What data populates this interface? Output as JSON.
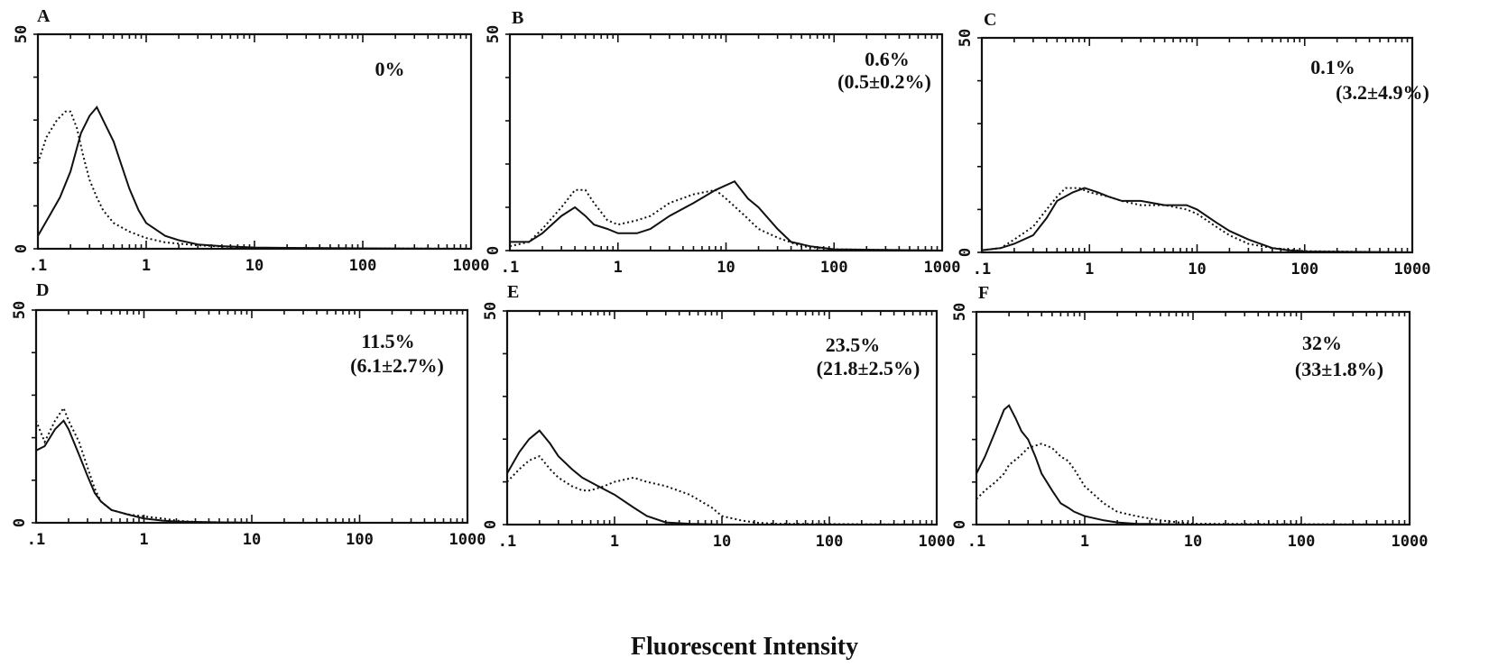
{
  "figure": {
    "xlabel": "Fluorescent Intensity"
  },
  "chart_data": [
    {
      "type": "line",
      "letter": "A",
      "value_text": "0%",
      "mean_text": "",
      "xscale": "log",
      "xlim": [
        0.1,
        1000
      ],
      "ylim": [
        0,
        50
      ],
      "xticklabels": [
        ".1",
        "1",
        "10",
        "100",
        "1000"
      ],
      "yticklabels": [
        "0",
        "50"
      ],
      "series": [
        {
          "style": "solid",
          "x": [
            0.1,
            0.13,
            0.16,
            0.2,
            0.25,
            0.3,
            0.35,
            0.4,
            0.5,
            0.6,
            0.7,
            0.85,
            1,
            1.5,
            2,
            3,
            5,
            10,
            20,
            100,
            1000
          ],
          "y": [
            3,
            8,
            12,
            18,
            27,
            31,
            33,
            30,
            25,
            19,
            14,
            9,
            6,
            3,
            2,
            1,
            0.6,
            0.3,
            0.2,
            0.1,
            0
          ]
        },
        {
          "style": "dotted",
          "x": [
            0.1,
            0.12,
            0.15,
            0.18,
            0.2,
            0.23,
            0.26,
            0.3,
            0.35,
            0.4,
            0.5,
            0.7,
            1,
            1.5,
            3,
            10,
            1000
          ],
          "y": [
            20,
            26,
            30,
            32,
            32,
            28,
            22,
            16,
            12,
            9,
            6,
            4,
            2.5,
            1.5,
            0.8,
            0.2,
            0
          ]
        }
      ]
    },
    {
      "type": "line",
      "letter": "B",
      "value_text": "0.6%",
      "mean_text": "(0.5±0.2%)",
      "xscale": "log",
      "xlim": [
        0.1,
        1000
      ],
      "ylim": [
        0,
        50
      ],
      "xticklabels": [
        ".1",
        "1",
        "10",
        "100",
        "1000"
      ],
      "yticklabels": [
        "0",
        "50"
      ],
      "series": [
        {
          "style": "solid",
          "x": [
            0.1,
            0.15,
            0.2,
            0.3,
            0.4,
            0.5,
            0.6,
            0.8,
            1,
            1.5,
            2,
            3,
            5,
            8,
            12,
            16,
            20,
            30,
            40,
            60,
            100,
            1000
          ],
          "y": [
            2,
            2,
            4,
            8,
            10,
            8,
            6,
            5,
            4,
            4,
            5,
            8,
            11,
            14,
            16,
            12,
            10,
            5,
            2,
            1,
            0.3,
            0
          ]
        },
        {
          "style": "dotted",
          "x": [
            0.1,
            0.15,
            0.2,
            0.3,
            0.4,
            0.5,
            0.6,
            0.8,
            1,
            1.5,
            2,
            3,
            5,
            8,
            10,
            15,
            20,
            30,
            50,
            100,
            1000
          ],
          "y": [
            1,
            2,
            5,
            10,
            14,
            14,
            11,
            7,
            6,
            7,
            8,
            11,
            13,
            14,
            12,
            8,
            5,
            3,
            1,
            0.3,
            0
          ]
        }
      ]
    },
    {
      "type": "line",
      "letter": "C",
      "value_text": "0.1%",
      "mean_text": "(3.2±4.9%)",
      "xscale": "log",
      "xlim": [
        0.1,
        1000
      ],
      "ylim": [
        0,
        50
      ],
      "xticklabels": [
        ".1",
        "1",
        "10",
        "100",
        "1000"
      ],
      "yticklabels": [
        "0",
        "50"
      ],
      "series": [
        {
          "style": "solid",
          "x": [
            0.1,
            0.15,
            0.2,
            0.3,
            0.4,
            0.5,
            0.7,
            0.9,
            1.2,
            1.5,
            2,
            3,
            5,
            8,
            10,
            15,
            20,
            30,
            50,
            70,
            100,
            1000
          ],
          "y": [
            0.5,
            1,
            2,
            4,
            8,
            12,
            14,
            15,
            14,
            13,
            12,
            12,
            11,
            11,
            10,
            7,
            5,
            3,
            1,
            0.5,
            0.2,
            0
          ]
        },
        {
          "style": "dotted",
          "x": [
            0.1,
            0.15,
            0.2,
            0.3,
            0.4,
            0.5,
            0.6,
            0.8,
            1,
            1.5,
            2,
            3,
            5,
            8,
            10,
            15,
            20,
            30,
            50,
            100,
            1000
          ],
          "y": [
            0.5,
            1,
            3,
            6,
            10,
            13,
            15,
            15,
            14,
            13,
            12,
            11,
            11,
            10,
            9,
            6,
            4,
            2,
            1,
            0.3,
            0
          ]
        }
      ]
    },
    {
      "type": "line",
      "letter": "D",
      "value_text": "11.5%",
      "mean_text": "(6.1±2.7%)",
      "xscale": "log",
      "xlim": [
        0.1,
        1000
      ],
      "ylim": [
        0,
        50
      ],
      "xticklabels": [
        ".1",
        "1",
        "10",
        "100",
        "1000"
      ],
      "yticklabels": [
        "0",
        "50"
      ],
      "series": [
        {
          "style": "solid",
          "x": [
            0.1,
            0.12,
            0.15,
            0.18,
            0.2,
            0.25,
            0.3,
            0.35,
            0.4,
            0.5,
            0.7,
            1,
            1.5,
            2,
            5,
            10,
            1000
          ],
          "y": [
            17,
            18,
            22,
            24,
            22,
            16,
            11,
            7,
            5,
            3,
            2,
            1,
            0.5,
            0.3,
            0.1,
            0,
            0
          ]
        },
        {
          "style": "dotted",
          "x": [
            0.1,
            0.12,
            0.15,
            0.18,
            0.2,
            0.25,
            0.3,
            0.35,
            0.4,
            0.5,
            0.7,
            1,
            1.5,
            2,
            3,
            10,
            1000
          ],
          "y": [
            24,
            19,
            24,
            27,
            24,
            19,
            13,
            8,
            5,
            3,
            2,
            1.5,
            1,
            0.5,
            0.2,
            0,
            0
          ]
        }
      ]
    },
    {
      "type": "line",
      "letter": "E",
      "value_text": "23.5%",
      "mean_text": "(21.8±2.5%)",
      "xscale": "log",
      "xlim": [
        0.1,
        1000
      ],
      "ylim": [
        0,
        50
      ],
      "xticklabels": [
        ".1",
        "1",
        "10",
        "100",
        "1000"
      ],
      "yticklabels": [
        "0",
        "50"
      ],
      "series": [
        {
          "style": "solid",
          "x": [
            0.1,
            0.13,
            0.16,
            0.2,
            0.25,
            0.3,
            0.4,
            0.5,
            0.7,
            1,
            1.5,
            2,
            3,
            5,
            10,
            1000
          ],
          "y": [
            12,
            17,
            20,
            22,
            19,
            16,
            13,
            11,
            9,
            7,
            4,
            2,
            0.5,
            0.2,
            0,
            0
          ]
        },
        {
          "style": "dotted",
          "x": [
            0.1,
            0.13,
            0.16,
            0.2,
            0.25,
            0.3,
            0.4,
            0.5,
            0.6,
            0.8,
            1,
            1.5,
            2,
            3,
            5,
            8,
            10,
            15,
            20,
            30,
            1000
          ],
          "y": [
            10,
            13,
            15,
            16,
            13,
            11,
            9,
            8,
            8,
            9,
            10,
            11,
            10,
            9,
            7,
            4,
            2,
            1,
            0.5,
            0.2,
            0
          ]
        }
      ]
    },
    {
      "type": "line",
      "letter": "F",
      "value_text": "32%",
      "mean_text": "(33±1.8%)",
      "xscale": "log",
      "xlim": [
        0.1,
        1000
      ],
      "ylim": [
        0,
        50
      ],
      "xticklabels": [
        ".1",
        "1",
        "10",
        "100",
        "1000"
      ],
      "yticklabels": [
        "0",
        "50"
      ],
      "series": [
        {
          "style": "solid",
          "x": [
            0.1,
            0.12,
            0.15,
            0.18,
            0.2,
            0.23,
            0.26,
            0.3,
            0.35,
            0.4,
            0.5,
            0.6,
            0.7,
            0.8,
            1,
            1.5,
            2,
            3,
            10,
            1000
          ],
          "y": [
            12,
            16,
            22,
            27,
            28,
            25,
            22,
            20,
            16,
            12,
            8,
            5,
            4,
            3,
            2,
            1,
            0.5,
            0.2,
            0,
            0
          ]
        },
        {
          "style": "dotted",
          "x": [
            0.1,
            0.12,
            0.15,
            0.18,
            0.2,
            0.25,
            0.3,
            0.4,
            0.5,
            0.6,
            0.7,
            0.8,
            1,
            1.5,
            2,
            3,
            5,
            8,
            10,
            1000
          ],
          "y": [
            6,
            8,
            10,
            12,
            14,
            16,
            18,
            19,
            18,
            16,
            15,
            13,
            9,
            5,
            3,
            2,
            1,
            0.4,
            0.2,
            0
          ]
        }
      ]
    }
  ]
}
